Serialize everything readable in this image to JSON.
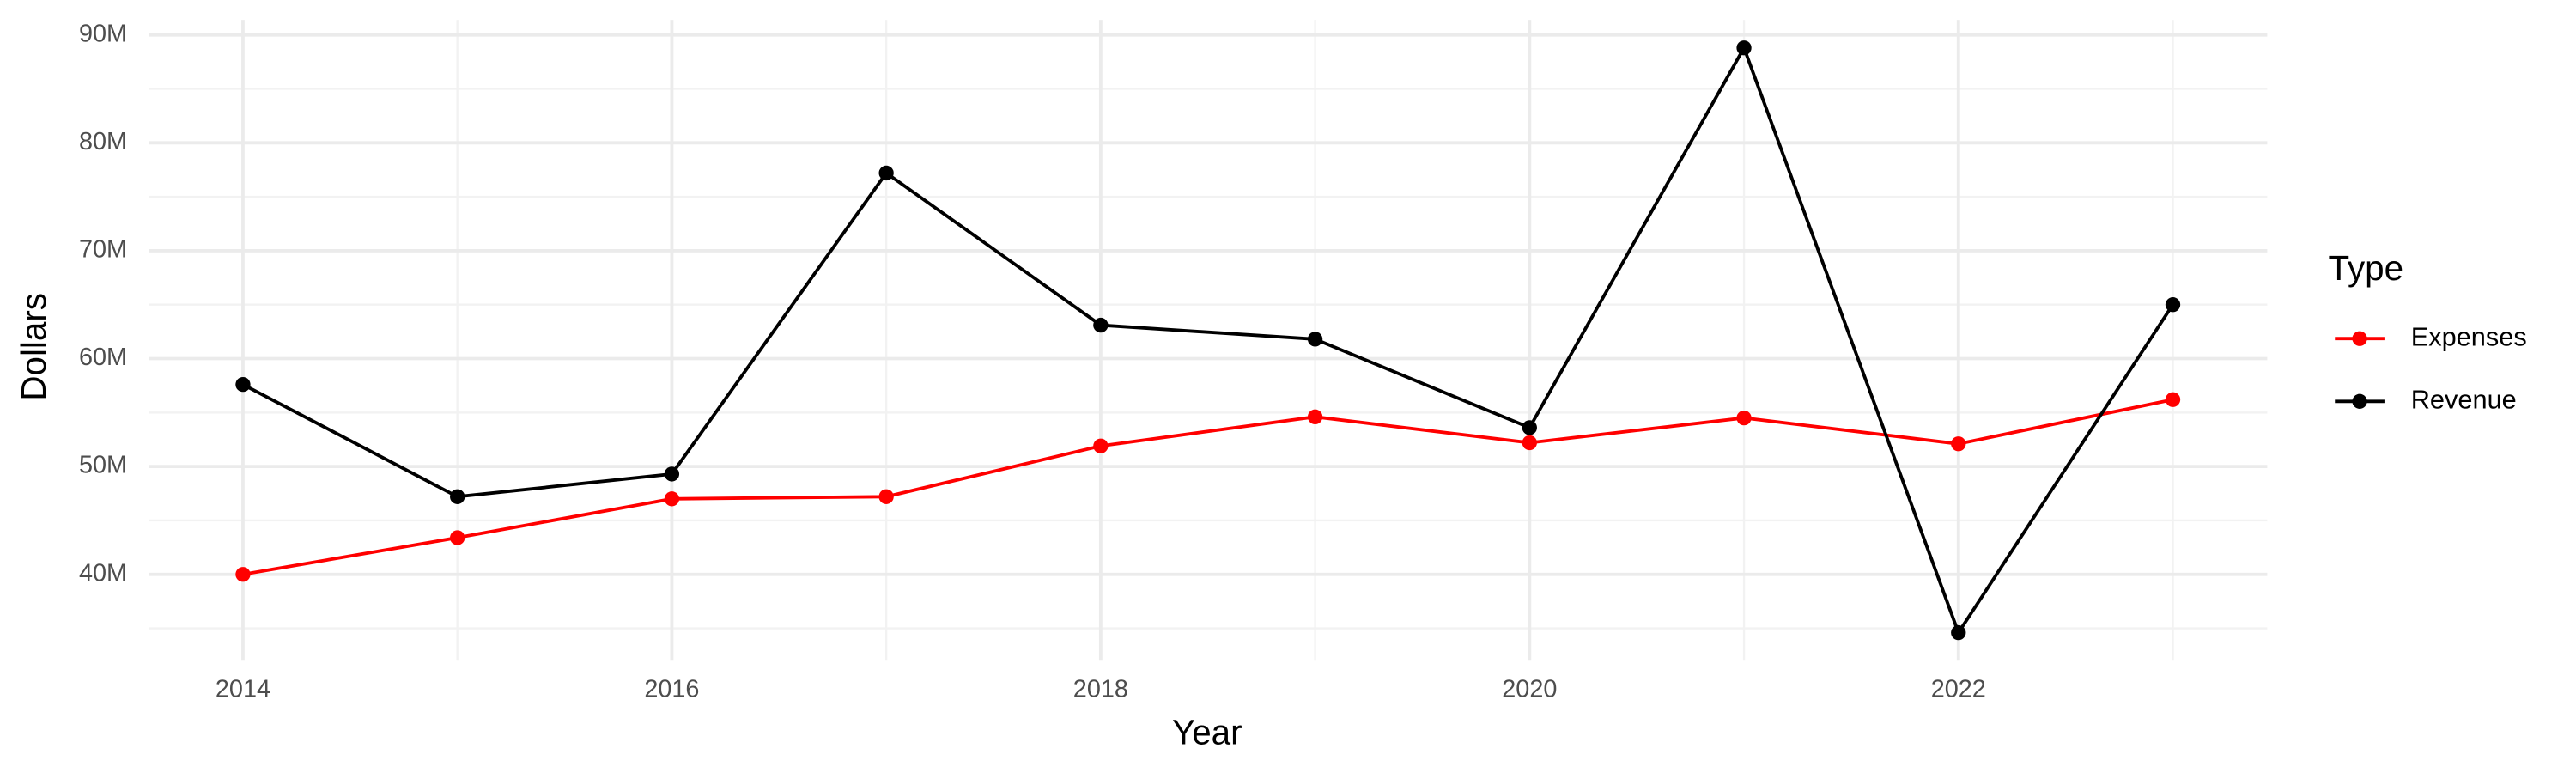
{
  "chart_data": {
    "type": "line",
    "x_label": "Year",
    "y_label": "Dollars",
    "x": [
      2014,
      2015,
      2016,
      2017,
      2018,
      2019,
      2020,
      2021,
      2022,
      2023
    ],
    "series": [
      {
        "name": "Expenses",
        "color": "#ff0000",
        "values": [
          40000000,
          43400000,
          47000000,
          47200000,
          51900000,
          54600000,
          52200000,
          54500000,
          52100000,
          56200000
        ]
      },
      {
        "name": "Revenue",
        "color": "#000000",
        "values": [
          57600000,
          47200000,
          49300000,
          77200000,
          63100000,
          61800000,
          53600000,
          88800000,
          34600000,
          65000000
        ]
      }
    ],
    "xlim": [
      2013.56,
      2023.44
    ],
    "xticks": [
      2014,
      2016,
      2018,
      2020,
      2022
    ],
    "ylim": [
      32000000,
      91400000
    ],
    "yticks": [
      {
        "value": 40000000,
        "label": "40M"
      },
      {
        "value": 50000000,
        "label": "50M"
      },
      {
        "value": 60000000,
        "label": "60M"
      },
      {
        "value": 70000000,
        "label": "70M"
      },
      {
        "value": 80000000,
        "label": "80M"
      },
      {
        "value": 90000000,
        "label": "90M"
      }
    ],
    "grid": true,
    "legend_title": "Type",
    "legend_position": "right"
  }
}
